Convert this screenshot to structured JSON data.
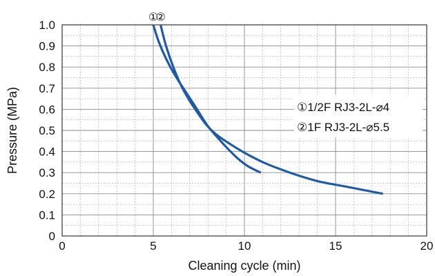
{
  "chart_data": {
    "type": "line",
    "title": "",
    "xlabel": "Cleaning cycle (min)",
    "ylabel": "Pressure (MPa)",
    "xlim": [
      0,
      20
    ],
    "ylim": [
      0,
      1.0
    ],
    "x_ticks": [
      "0",
      "5",
      "10",
      "15",
      "20"
    ],
    "y_ticks": [
      "0",
      "0.1",
      "0.2",
      "0.3",
      "0.4",
      "0.5",
      "0.6",
      "0.7",
      "0.8",
      "0.9",
      "1.0"
    ],
    "grid": true,
    "legend_position": "right",
    "line_color": "#1f5aa6",
    "series": [
      {
        "name": "①1/2F RJ3-2L-⌀4",
        "marker": "①",
        "x": [
          5.0,
          5.3,
          5.7,
          6.2,
          6.8,
          7.4,
          8.0,
          8.8,
          9.6,
          10.2,
          10.9
        ],
        "y": [
          1.0,
          0.92,
          0.84,
          0.76,
          0.68,
          0.6,
          0.52,
          0.44,
          0.37,
          0.33,
          0.3
        ]
      },
      {
        "name": "②1F RJ3-2L-⌀5.5",
        "marker": "②",
        "x": [
          5.4,
          5.7,
          6.1,
          6.6,
          7.3,
          8.2,
          9.5,
          11.0,
          12.5,
          14.0,
          15.5,
          17.6
        ],
        "y": [
          1.0,
          0.9,
          0.8,
          0.7,
          0.6,
          0.5,
          0.42,
          0.35,
          0.3,
          0.26,
          0.235,
          0.2
        ]
      }
    ]
  }
}
